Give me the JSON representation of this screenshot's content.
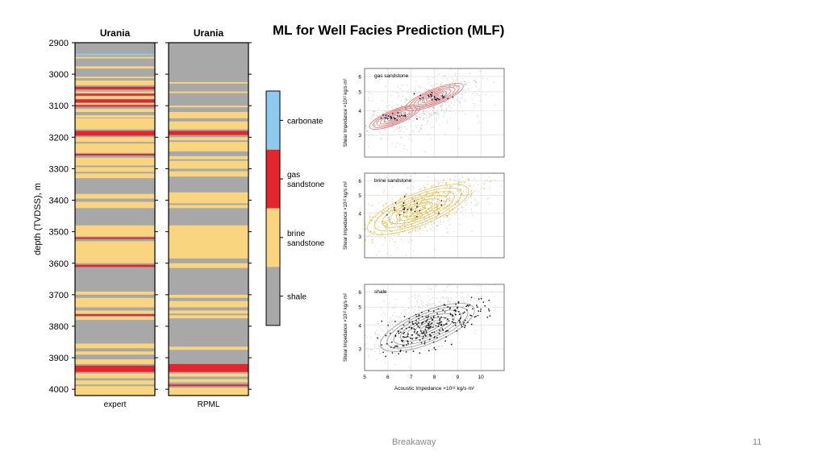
{
  "slide": {
    "title": "ML for Well Facies Prediction (MLF)",
    "footer": "Breakaway",
    "page_number": "11"
  },
  "colors": {
    "carbonate": "#8ecaf0",
    "gas_sandstone": "#e2262b",
    "brine_sandstone": "#f8d57e",
    "shale": "#a8a8a8"
  },
  "chart_data": [
    {
      "type": "facies-log",
      "tracks": [
        {
          "title": "Urania",
          "xlabel": "expert"
        },
        {
          "title": "Urania",
          "xlabel": "RPML"
        }
      ],
      "ylabel": "depth (TVDSS), m",
      "ylim": [
        2900,
        4020
      ],
      "yticks": [
        2900,
        3000,
        3100,
        3200,
        3300,
        3400,
        3500,
        3600,
        3700,
        3800,
        3900,
        4000
      ],
      "background_facies": "shale",
      "expert_intervals": [
        {
          "top": 2935,
          "base": 2940,
          "facies": "carbonate"
        },
        {
          "top": 2945,
          "base": 2950,
          "facies": "brine_sandstone"
        },
        {
          "top": 2975,
          "base": 2982,
          "facies": "brine_sandstone"
        },
        {
          "top": 3008,
          "base": 3013,
          "facies": "brine_sandstone"
        },
        {
          "top": 3020,
          "base": 3035,
          "facies": "brine_sandstone"
        },
        {
          "top": 3040,
          "base": 3048,
          "facies": "gas_sandstone"
        },
        {
          "top": 3055,
          "base": 3060,
          "facies": "brine_sandstone"
        },
        {
          "top": 3062,
          "base": 3068,
          "facies": "gas_sandstone"
        },
        {
          "top": 3070,
          "base": 3078,
          "facies": "brine_sandstone"
        },
        {
          "top": 3080,
          "base": 3090,
          "facies": "gas_sandstone"
        },
        {
          "top": 3092,
          "base": 3096,
          "facies": "brine_sandstone"
        },
        {
          "top": 3098,
          "base": 3103,
          "facies": "gas_sandstone"
        },
        {
          "top": 3110,
          "base": 3120,
          "facies": "brine_sandstone"
        },
        {
          "top": 3130,
          "base": 3138,
          "facies": "brine_sandstone"
        },
        {
          "top": 3140,
          "base": 3175,
          "facies": "brine_sandstone"
        },
        {
          "top": 3180,
          "base": 3195,
          "facies": "gas_sandstone"
        },
        {
          "top": 3200,
          "base": 3215,
          "facies": "brine_sandstone"
        },
        {
          "top": 3220,
          "base": 3250,
          "facies": "brine_sandstone"
        },
        {
          "top": 3253,
          "base": 3258,
          "facies": "gas_sandstone"
        },
        {
          "top": 3265,
          "base": 3290,
          "facies": "brine_sandstone"
        },
        {
          "top": 3295,
          "base": 3310,
          "facies": "brine_sandstone"
        },
        {
          "top": 3315,
          "base": 3330,
          "facies": "brine_sandstone"
        },
        {
          "top": 3380,
          "base": 3395,
          "facies": "brine_sandstone"
        },
        {
          "top": 3405,
          "base": 3425,
          "facies": "brine_sandstone"
        },
        {
          "top": 3480,
          "base": 3515,
          "facies": "brine_sandstone"
        },
        {
          "top": 3518,
          "base": 3523,
          "facies": "gas_sandstone"
        },
        {
          "top": 3530,
          "base": 3600,
          "facies": "brine_sandstone"
        },
        {
          "top": 3605,
          "base": 3612,
          "facies": "gas_sandstone"
        },
        {
          "top": 3690,
          "base": 3700,
          "facies": "brine_sandstone"
        },
        {
          "top": 3710,
          "base": 3740,
          "facies": "brine_sandstone"
        },
        {
          "top": 3750,
          "base": 3760,
          "facies": "brine_sandstone"
        },
        {
          "top": 3762,
          "base": 3767,
          "facies": "gas_sandstone"
        },
        {
          "top": 3770,
          "base": 3780,
          "facies": "brine_sandstone"
        },
        {
          "top": 3855,
          "base": 3870,
          "facies": "brine_sandstone"
        },
        {
          "top": 3880,
          "base": 3890,
          "facies": "brine_sandstone"
        },
        {
          "top": 3905,
          "base": 3920,
          "facies": "brine_sandstone"
        },
        {
          "top": 3925,
          "base": 3945,
          "facies": "gas_sandstone"
        },
        {
          "top": 3950,
          "base": 3965,
          "facies": "brine_sandstone"
        },
        {
          "top": 3972,
          "base": 3985,
          "facies": "brine_sandstone"
        },
        {
          "top": 3990,
          "base": 4020,
          "facies": "brine_sandstone"
        }
      ],
      "rpml_intervals": [
        {
          "top": 3025,
          "base": 3030,
          "facies": "brine_sandstone"
        },
        {
          "top": 3055,
          "base": 3060,
          "facies": "brine_sandstone"
        },
        {
          "top": 3100,
          "base": 3105,
          "facies": "brine_sandstone"
        },
        {
          "top": 3120,
          "base": 3140,
          "facies": "brine_sandstone"
        },
        {
          "top": 3150,
          "base": 3175,
          "facies": "brine_sandstone"
        },
        {
          "top": 3180,
          "base": 3193,
          "facies": "gas_sandstone"
        },
        {
          "top": 3200,
          "base": 3210,
          "facies": "brine_sandstone"
        },
        {
          "top": 3215,
          "base": 3245,
          "facies": "brine_sandstone"
        },
        {
          "top": 3260,
          "base": 3270,
          "facies": "brine_sandstone"
        },
        {
          "top": 3275,
          "base": 3300,
          "facies": "brine_sandstone"
        },
        {
          "top": 3308,
          "base": 3325,
          "facies": "brine_sandstone"
        },
        {
          "top": 3375,
          "base": 3410,
          "facies": "brine_sandstone"
        },
        {
          "top": 3415,
          "base": 3425,
          "facies": "brine_sandstone"
        },
        {
          "top": 3480,
          "base": 3585,
          "facies": "brine_sandstone"
        },
        {
          "top": 3600,
          "base": 3615,
          "facies": "brine_sandstone"
        },
        {
          "top": 3700,
          "base": 3710,
          "facies": "brine_sandstone"
        },
        {
          "top": 3720,
          "base": 3740,
          "facies": "brine_sandstone"
        },
        {
          "top": 3750,
          "base": 3760,
          "facies": "brine_sandstone"
        },
        {
          "top": 3765,
          "base": 3775,
          "facies": "brine_sandstone"
        },
        {
          "top": 3865,
          "base": 3875,
          "facies": "brine_sandstone"
        },
        {
          "top": 3920,
          "base": 3945,
          "facies": "gas_sandstone"
        },
        {
          "top": 3950,
          "base": 3960,
          "facies": "brine_sandstone"
        },
        {
          "top": 3968,
          "base": 3978,
          "facies": "brine_sandstone"
        },
        {
          "top": 3985,
          "base": 3990,
          "facies": "gas_sandstone"
        },
        {
          "top": 3995,
          "base": 4020,
          "facies": "brine_sandstone"
        }
      ]
    },
    {
      "type": "legend-colorbar",
      "entries": [
        {
          "key": "carbonate",
          "label": "carbonate"
        },
        {
          "key": "gas_sandstone",
          "label": "gas sandstone"
        },
        {
          "key": "brine_sandstone",
          "label": "brine sandstone"
        },
        {
          "key": "shale",
          "label": "shale"
        }
      ]
    },
    {
      "type": "scatter",
      "panels": [
        {
          "label": "gas sandstone",
          "point_color": "#bdbdbd",
          "contour_color": "#e05a5a",
          "clusters": [
            {
              "cx": 6.3,
              "cy": 3.7,
              "sx": 0.7,
              "sy": 0.22
            },
            {
              "cx": 8.0,
              "cy": 4.7,
              "sx": 0.8,
              "sy": 0.3
            }
          ]
        },
        {
          "label": "brine sandstone",
          "point_color": "#e7c64a",
          "contour_color": "#e5b83a",
          "clusters": [
            {
              "cx": 7.3,
              "cy": 4.2,
              "sx": 1.4,
              "sy": 0.6
            }
          ]
        },
        {
          "label": "shale",
          "point_color": "#222222",
          "contour_color": "#888888",
          "clusters": [
            {
              "cx": 7.7,
              "cy": 3.9,
              "sx": 1.3,
              "sy": 0.55
            }
          ]
        }
      ],
      "ylabel": "Shear Impedance ×10¹² kg/s·m²",
      "xlabel": "Acoustic Impedance ×10¹² kg/s·m²",
      "xticks": [
        5,
        6,
        7,
        8,
        9,
        10
      ],
      "yticks": [
        3,
        4,
        5,
        6
      ],
      "xlim": [
        5,
        11
      ],
      "ylim": [
        2.3,
        6.6
      ],
      "log_y": true
    }
  ]
}
